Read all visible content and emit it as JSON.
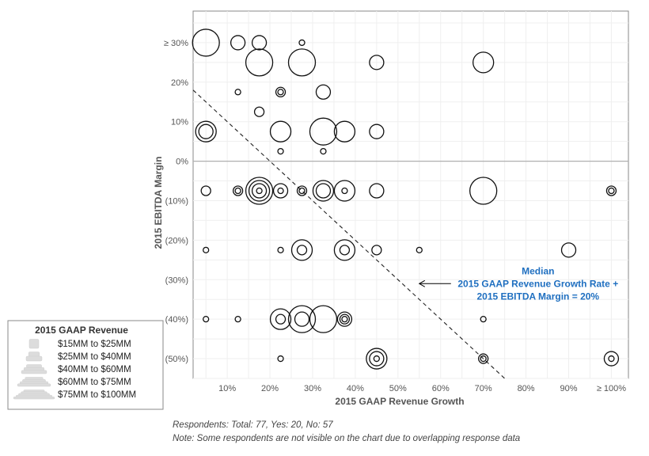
{
  "chart_data": {
    "type": "scatter",
    "xlabel": "2015 GAAP Revenue Growth",
    "ylabel": "2015 EBITDA Margin",
    "xlim": [
      0.02,
      1.04
    ],
    "ylim": [
      -0.55,
      0.38
    ],
    "x_ticks": [
      {
        "value": 0.1,
        "label": "10%"
      },
      {
        "value": 0.2,
        "label": "20%"
      },
      {
        "value": 0.3,
        "label": "30%"
      },
      {
        "value": 0.4,
        "label": "40%"
      },
      {
        "value": 0.5,
        "label": "50%"
      },
      {
        "value": 0.6,
        "label": "60%"
      },
      {
        "value": 0.7,
        "label": "70%"
      },
      {
        "value": 0.8,
        "label": "80%"
      },
      {
        "value": 0.9,
        "label": "90%"
      },
      {
        "value": 1.0,
        "label": "≥ 100%"
      }
    ],
    "y_ticks": [
      {
        "value": 0.3,
        "label": "≥ 30%"
      },
      {
        "value": 0.2,
        "label": "20%"
      },
      {
        "value": 0.1,
        "label": "10%"
      },
      {
        "value": 0.0,
        "label": "0%"
      },
      {
        "value": -0.1,
        "label": "(10%)"
      },
      {
        "value": -0.2,
        "label": "(20%)"
      },
      {
        "value": -0.3,
        "label": "(30%)"
      },
      {
        "value": -0.4,
        "label": "(40%)"
      },
      {
        "value": -0.5,
        "label": "(50%)"
      }
    ],
    "grid": true,
    "points": [
      {
        "x": 0.05,
        "y": 0.3,
        "size": 5
      },
      {
        "x": 0.125,
        "y": 0.3,
        "size": 3
      },
      {
        "x": 0.175,
        "y": 0.3,
        "size": 3
      },
      {
        "x": 0.275,
        "y": 0.3,
        "size": 1
      },
      {
        "x": 0.175,
        "y": 0.25,
        "size": 5
      },
      {
        "x": 0.275,
        "y": 0.25,
        "size": 5
      },
      {
        "x": 0.45,
        "y": 0.25,
        "size": 3
      },
      {
        "x": 0.7,
        "y": 0.25,
        "size": 4
      },
      {
        "x": 0.125,
        "y": 0.175,
        "size": 1
      },
      {
        "x": 0.225,
        "y": 0.175,
        "size": 2
      },
      {
        "x": 0.225,
        "y": 0.175,
        "size": 1
      },
      {
        "x": 0.325,
        "y": 0.175,
        "size": 3
      },
      {
        "x": 0.175,
        "y": 0.125,
        "size": 2
      },
      {
        "x": 0.05,
        "y": 0.075,
        "size": 3
      },
      {
        "x": 0.05,
        "y": 0.075,
        "size": 4
      },
      {
        "x": 0.225,
        "y": 0.075,
        "size": 4
      },
      {
        "x": 0.325,
        "y": 0.075,
        "size": 5
      },
      {
        "x": 0.375,
        "y": 0.075,
        "size": 4
      },
      {
        "x": 0.45,
        "y": 0.075,
        "size": 3
      },
      {
        "x": 0.225,
        "y": 0.025,
        "size": 1
      },
      {
        "x": 0.325,
        "y": 0.025,
        "size": 1
      },
      {
        "x": 0.05,
        "y": -0.075,
        "size": 2
      },
      {
        "x": 0.125,
        "y": -0.075,
        "size": 2
      },
      {
        "x": 0.125,
        "y": -0.075,
        "size": 1
      },
      {
        "x": 0.175,
        "y": -0.075,
        "size": 5
      },
      {
        "x": 0.175,
        "y": -0.075,
        "size": 4
      },
      {
        "x": 0.175,
        "y": -0.075,
        "size": 3
      },
      {
        "x": 0.175,
        "y": -0.075,
        "size": 1
      },
      {
        "x": 0.225,
        "y": -0.075,
        "size": 3
      },
      {
        "x": 0.225,
        "y": -0.075,
        "size": 1
      },
      {
        "x": 0.275,
        "y": -0.075,
        "size": 2
      },
      {
        "x": 0.275,
        "y": -0.075,
        "size": 1
      },
      {
        "x": 0.325,
        "y": -0.075,
        "size": 4
      },
      {
        "x": 0.325,
        "y": -0.075,
        "size": 3
      },
      {
        "x": 0.375,
        "y": -0.075,
        "size": 4
      },
      {
        "x": 0.375,
        "y": -0.075,
        "size": 1
      },
      {
        "x": 0.45,
        "y": -0.075,
        "size": 3
      },
      {
        "x": 0.7,
        "y": -0.075,
        "size": 5
      },
      {
        "x": 1.0,
        "y": -0.075,
        "size": 2
      },
      {
        "x": 1.0,
        "y": -0.075,
        "size": 1
      },
      {
        "x": 0.05,
        "y": -0.225,
        "size": 1
      },
      {
        "x": 0.225,
        "y": -0.225,
        "size": 1
      },
      {
        "x": 0.275,
        "y": -0.225,
        "size": 4
      },
      {
        "x": 0.275,
        "y": -0.225,
        "size": 2
      },
      {
        "x": 0.375,
        "y": -0.225,
        "size": 4
      },
      {
        "x": 0.375,
        "y": -0.225,
        "size": 2
      },
      {
        "x": 0.45,
        "y": -0.225,
        "size": 2
      },
      {
        "x": 0.55,
        "y": -0.225,
        "size": 1
      },
      {
        "x": 0.9,
        "y": -0.225,
        "size": 3
      },
      {
        "x": 0.05,
        "y": -0.4,
        "size": 1
      },
      {
        "x": 0.125,
        "y": -0.4,
        "size": 1
      },
      {
        "x": 0.225,
        "y": -0.4,
        "size": 4
      },
      {
        "x": 0.225,
        "y": -0.4,
        "size": 2
      },
      {
        "x": 0.275,
        "y": -0.4,
        "size": 5
      },
      {
        "x": 0.275,
        "y": -0.4,
        "size": 3
      },
      {
        "x": 0.325,
        "y": -0.4,
        "size": 5
      },
      {
        "x": 0.375,
        "y": -0.4,
        "size": 3
      },
      {
        "x": 0.375,
        "y": -0.4,
        "size": 2
      },
      {
        "x": 0.375,
        "y": -0.4,
        "size": 1
      },
      {
        "x": 0.7,
        "y": -0.4,
        "size": 1
      },
      {
        "x": 0.225,
        "y": -0.5,
        "size": 1
      },
      {
        "x": 0.45,
        "y": -0.5,
        "size": 4
      },
      {
        "x": 0.45,
        "y": -0.5,
        "size": 3
      },
      {
        "x": 0.45,
        "y": -0.5,
        "size": 1
      },
      {
        "x": 0.7,
        "y": -0.5,
        "size": 2
      },
      {
        "x": 0.7,
        "y": -0.5,
        "size": 1
      },
      {
        "x": 1.0,
        "y": -0.5,
        "size": 3
      },
      {
        "x": 1.0,
        "y": -0.5,
        "size": 1
      }
    ],
    "reference_line": {
      "description": "x + y = 20%",
      "from": {
        "x": 0.02,
        "y": 0.18
      },
      "to": {
        "x": 0.75,
        "y": -0.55
      },
      "style": "dashed"
    },
    "annotation": {
      "lines": [
        "Median",
        "2015 GAAP Revenue Growth Rate +",
        "2015 EBITDA Margin = 20%"
      ],
      "arrow_target": {
        "x": 0.55,
        "y": -0.31
      },
      "color": "#1f6fc0"
    },
    "legend": {
      "title": "2015 GAAP Revenue",
      "placement": "bottom-left",
      "items": [
        {
          "size": 1,
          "label": "$15MM to $25MM"
        },
        {
          "size": 2,
          "label": "$25MM to $40MM"
        },
        {
          "size": 3,
          "label": "$40MM to $60MM"
        },
        {
          "size": 4,
          "label": "$60MM to $75MM"
        },
        {
          "size": 5,
          "label": "$75MM to $100MM"
        }
      ]
    }
  },
  "footnotes": {
    "respondents": "Respondents: Total: 77, Yes: 20, No: 57",
    "note": "Note: Some respondents are not visible on the chart due to overlapping response data"
  }
}
